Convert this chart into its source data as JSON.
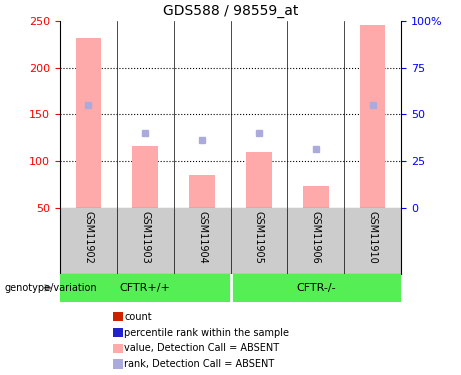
{
  "title": "GDS588 / 98559_at",
  "samples": [
    "GSM11902",
    "GSM11903",
    "GSM11904",
    "GSM11905",
    "GSM11906",
    "GSM11910"
  ],
  "group_labels": [
    "CFTR+/+",
    "CFTR-/-"
  ],
  "group_colors": [
    "#55ee55",
    "#55ee55"
  ],
  "bar_values": [
    232,
    116,
    85,
    110,
    74,
    245
  ],
  "rank_values": [
    160,
    130,
    123,
    130,
    113,
    160
  ],
  "bar_color_absent": "#ffaaaa",
  "rank_color_absent": "#aaaadd",
  "bar_bottom": 50,
  "ylim_left": [
    50,
    250
  ],
  "ylim_right": [
    0,
    100
  ],
  "yticks_left": [
    50,
    100,
    150,
    200,
    250
  ],
  "yticks_right": [
    0,
    25,
    50,
    75,
    100
  ],
  "ytick_labels_right": [
    "0",
    "25",
    "50",
    "75",
    "100%"
  ],
  "grid_values": [
    100,
    150,
    200
  ],
  "legend_items": [
    {
      "label": "count",
      "color": "#cc2200"
    },
    {
      "label": "percentile rank within the sample",
      "color": "#2222cc"
    },
    {
      "label": "value, Detection Call = ABSENT",
      "color": "#ffaaaa"
    },
    {
      "label": "rank, Detection Call = ABSENT",
      "color": "#aaaadd"
    }
  ],
  "left_label": "genotype/variation",
  "background_color": "#ffffff",
  "sample_area_color": "#cccccc"
}
